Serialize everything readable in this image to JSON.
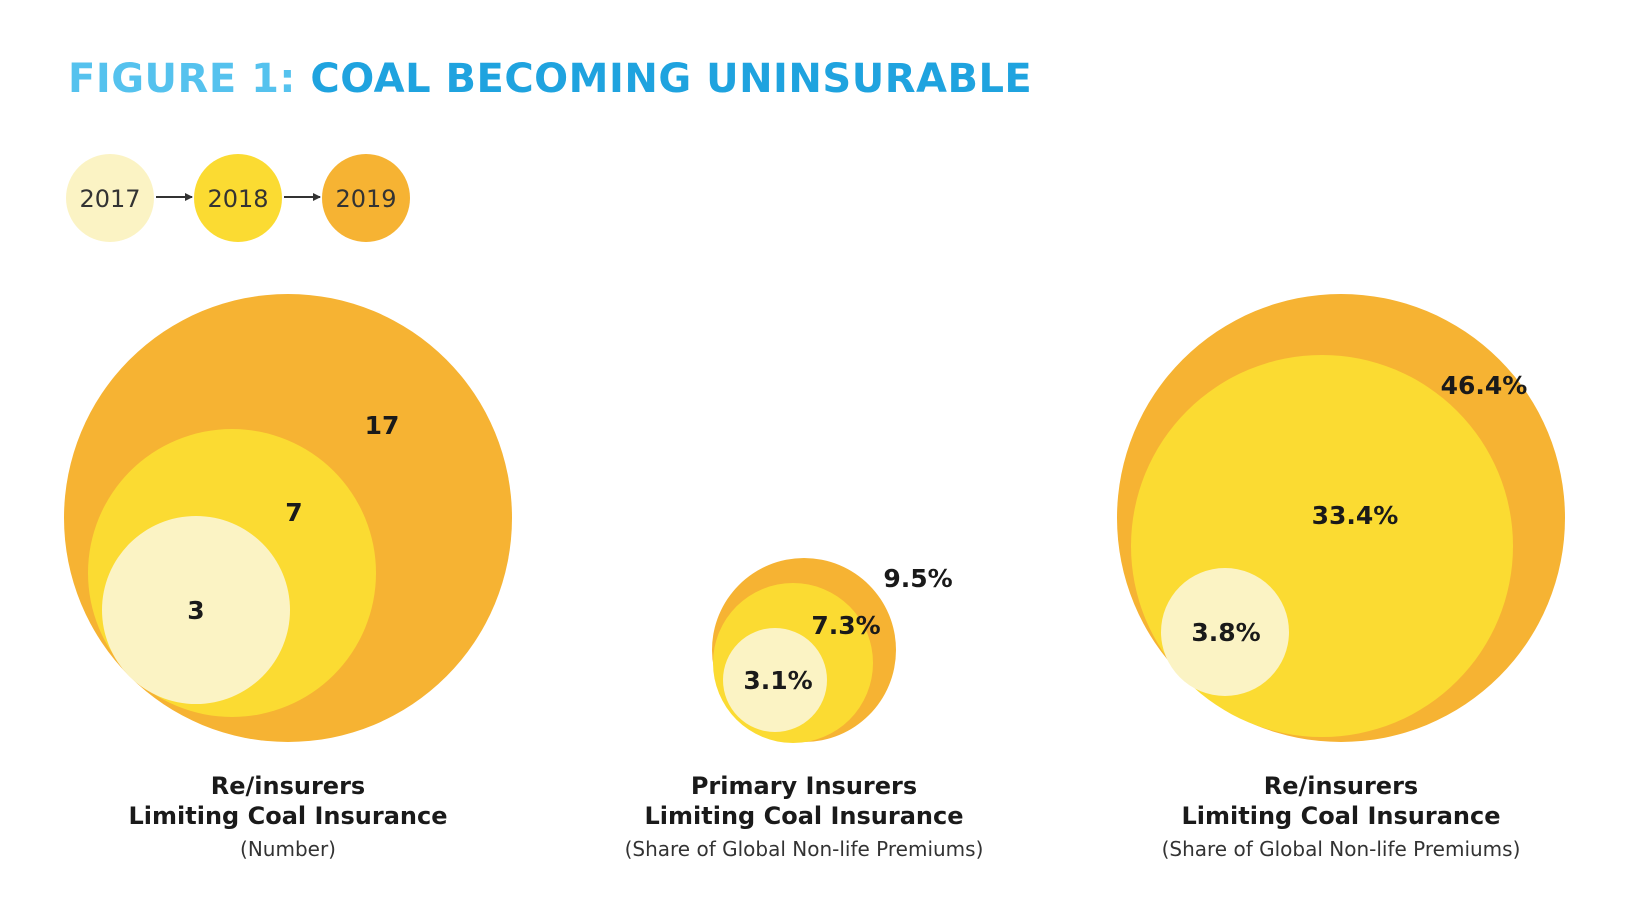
{
  "title_lead": "FIGURE 1:",
  "title_main": "COAL BECOMING UNINSURABLE",
  "legend": [
    {
      "label": "2017",
      "color": "#fbf3c4"
    },
    {
      "label": "2018",
      "color": "#fbdb32"
    },
    {
      "label": "2019",
      "color": "#f6b333"
    }
  ],
  "chart_data": [
    {
      "type": "nested-bubble",
      "caption_line1": "Re/insurers",
      "caption_line2": "Limiting Coal Insurance",
      "caption_line3": "(Number)",
      "series": [
        {
          "name": "2019",
          "value": 17,
          "label": "17"
        },
        {
          "name": "2018",
          "value": 7,
          "label": "7"
        },
        {
          "name": "2017",
          "value": 3,
          "label": "3"
        }
      ]
    },
    {
      "type": "nested-bubble",
      "caption_line1": "Primary Insurers",
      "caption_line2": "Limiting Coal Insurance",
      "caption_line3": "(Share of Global Non-life Premiums)",
      "series": [
        {
          "name": "2019",
          "value": 9.5,
          "label": "9.5%"
        },
        {
          "name": "2018",
          "value": 7.3,
          "label": "7.3%"
        },
        {
          "name": "2017",
          "value": 3.1,
          "label": "3.1%"
        }
      ]
    },
    {
      "type": "nested-bubble",
      "caption_line1": "Re/insurers",
      "caption_line2": "Limiting Coal Insurance",
      "caption_line3": "(Share of Global Non-life Premiums)",
      "series": [
        {
          "name": "2019",
          "value": 46.4,
          "label": "46.4%"
        },
        {
          "name": "2018",
          "value": 33.4,
          "label": "33.4%"
        },
        {
          "name": "2017",
          "value": 3.8,
          "label": "3.8%"
        }
      ]
    }
  ]
}
